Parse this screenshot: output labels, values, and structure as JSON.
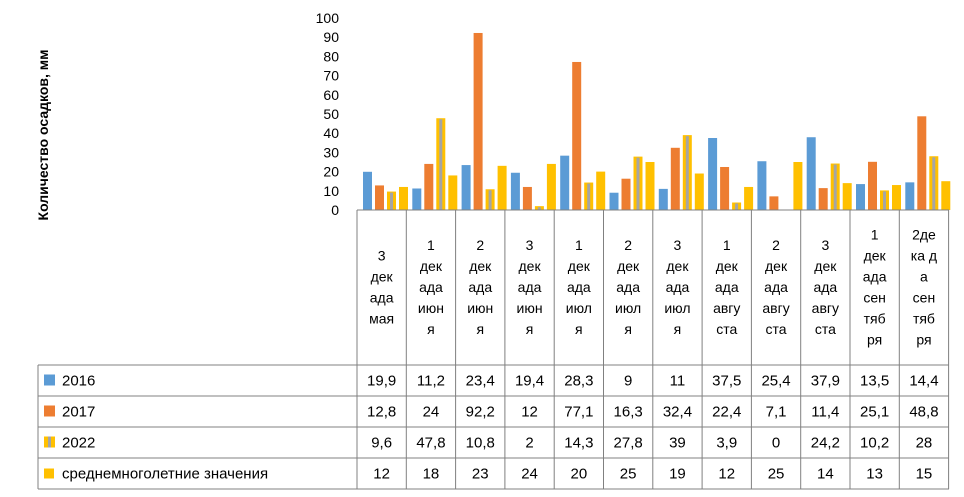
{
  "chart_data": {
    "type": "bar",
    "ylabel": "Количество осадков, мм",
    "ylim": [
      0,
      100
    ],
    "yticks": [
      "0",
      "10",
      "20",
      "30",
      "40",
      "50",
      "60",
      "70",
      "80",
      "90",
      "100"
    ],
    "categories": [
      [
        "3",
        "дек",
        "ада",
        "мая"
      ],
      [
        "1",
        "дек",
        "ада",
        "июн",
        "я"
      ],
      [
        "2",
        "дек",
        "ада",
        "июн",
        "я"
      ],
      [
        "3",
        "дек",
        "ада",
        "июн",
        "я"
      ],
      [
        "1",
        "дек",
        "ада",
        "июл",
        "я"
      ],
      [
        "2",
        "дек",
        "ада",
        "июл",
        "я"
      ],
      [
        "3",
        "дек",
        "ада",
        "июл",
        "я"
      ],
      [
        "1",
        "дек",
        "ада",
        "авгу",
        "ста"
      ],
      [
        "2",
        "дек",
        "ада",
        "авгу",
        "ста"
      ],
      [
        "3",
        "дек",
        "ада",
        "авгу",
        "ста"
      ],
      [
        "1",
        "дек",
        "ада",
        "сен",
        "тяб",
        "ря"
      ],
      [
        "2дe",
        "ка д",
        "а",
        "сен",
        "тяб",
        "ря"
      ]
    ],
    "series": [
      {
        "name": "2016",
        "color": "#5B9BD5",
        "values": [
          19.9,
          11.2,
          23.4,
          19.4,
          28.3,
          9,
          11,
          37.5,
          25.4,
          37.9,
          13.5,
          14.4
        ],
        "labels": [
          "19,9",
          "11,2",
          "23,4",
          "19,4",
          "28,3",
          "9",
          "11",
          "37,5",
          "25,4",
          "37,9",
          "13,5",
          "14,4"
        ]
      },
      {
        "name": "2017",
        "color": "#ED7D31",
        "values": [
          12.8,
          24,
          92.2,
          12,
          77.1,
          16.3,
          32.4,
          22.4,
          7.1,
          11.4,
          25.1,
          48.8
        ],
        "labels": [
          "12,8",
          "24",
          "92,2",
          "12",
          "77,1",
          "16,3",
          "32,4",
          "22,4",
          "7,1",
          "11,4",
          "25,1",
          "48,8"
        ]
      },
      {
        "name": "2022",
        "color": "#FFC000",
        "inner_color": "#A5A5A5",
        "values": [
          9.6,
          47.8,
          10.8,
          2,
          14.3,
          27.8,
          39,
          3.9,
          0,
          24.2,
          10.2,
          28
        ],
        "labels": [
          "9,6",
          "47,8",
          "10,8",
          "2",
          "14,3",
          "27,8",
          "39",
          "3,9",
          "0",
          "24,2",
          "10,2",
          "28"
        ]
      },
      {
        "name": "среднемноголетние значения",
        "color": "#FFC000",
        "values": [
          12,
          18,
          23,
          24,
          20,
          25,
          19,
          12,
          25,
          14,
          13,
          15
        ],
        "labels": [
          "12",
          "18",
          "23",
          "24",
          "20",
          "25",
          "19",
          "12",
          "25",
          "14",
          "13",
          "15"
        ]
      }
    ],
    "legend": "data-table-left",
    "grid": false
  }
}
